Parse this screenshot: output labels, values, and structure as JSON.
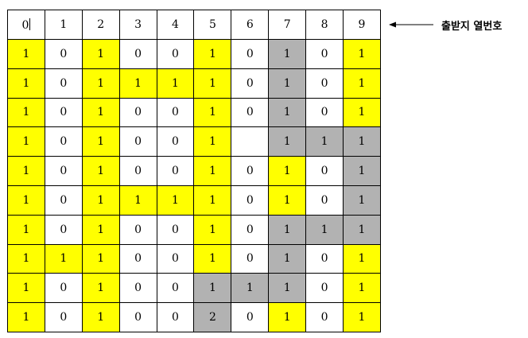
{
  "header": [
    "0",
    "1",
    "2",
    "3",
    "4",
    "5",
    "6",
    "7",
    "8",
    "9"
  ],
  "annotation": "출받지 열번호",
  "colors": {
    "yellow": "#ffff00",
    "gray": "#b2b2b2",
    "white": "#ffffff"
  },
  "rows": [
    [
      [
        "1",
        "y"
      ],
      [
        "0",
        "w"
      ],
      [
        "1",
        "y"
      ],
      [
        "0",
        "w"
      ],
      [
        "0",
        "w"
      ],
      [
        "1",
        "y"
      ],
      [
        "0",
        "w"
      ],
      [
        "1",
        "g"
      ],
      [
        "0",
        "w"
      ],
      [
        "1",
        "y"
      ]
    ],
    [
      [
        "1",
        "y"
      ],
      [
        "0",
        "w"
      ],
      [
        "1",
        "y"
      ],
      [
        "1",
        "y"
      ],
      [
        "1",
        "y"
      ],
      [
        "1",
        "y"
      ],
      [
        "0",
        "w"
      ],
      [
        "1",
        "g"
      ],
      [
        "0",
        "w"
      ],
      [
        "1",
        "y"
      ]
    ],
    [
      [
        "1",
        "y"
      ],
      [
        "0",
        "w"
      ],
      [
        "1",
        "y"
      ],
      [
        "0",
        "w"
      ],
      [
        "0",
        "w"
      ],
      [
        "1",
        "y"
      ],
      [
        "0",
        "w"
      ],
      [
        "1",
        "g"
      ],
      [
        "0",
        "w"
      ],
      [
        "1",
        "y"
      ]
    ],
    [
      [
        "1",
        "y"
      ],
      [
        "0",
        "w"
      ],
      [
        "1",
        "y"
      ],
      [
        "0",
        "w"
      ],
      [
        "0",
        "w"
      ],
      [
        "1",
        "y"
      ],
      [
        "",
        "w"
      ],
      [
        "1",
        "g"
      ],
      [
        "1",
        "g"
      ],
      [
        "1",
        "g"
      ]
    ],
    [
      [
        "1",
        "y"
      ],
      [
        "0",
        "w"
      ],
      [
        "1",
        "y"
      ],
      [
        "0",
        "w"
      ],
      [
        "0",
        "w"
      ],
      [
        "1",
        "y"
      ],
      [
        "0",
        "w"
      ],
      [
        "1",
        "y"
      ],
      [
        "0",
        "w"
      ],
      [
        "1",
        "g"
      ]
    ],
    [
      [
        "1",
        "y"
      ],
      [
        "0",
        "w"
      ],
      [
        "1",
        "y"
      ],
      [
        "1",
        "y"
      ],
      [
        "1",
        "y"
      ],
      [
        "1",
        "y"
      ],
      [
        "0",
        "w"
      ],
      [
        "1",
        "y"
      ],
      [
        "0",
        "w"
      ],
      [
        "1",
        "g"
      ]
    ],
    [
      [
        "1",
        "y"
      ],
      [
        "0",
        "w"
      ],
      [
        "1",
        "y"
      ],
      [
        "0",
        "w"
      ],
      [
        "0",
        "w"
      ],
      [
        "1",
        "y"
      ],
      [
        "0",
        "w"
      ],
      [
        "1",
        "g"
      ],
      [
        "1",
        "g"
      ],
      [
        "1",
        "g"
      ]
    ],
    [
      [
        "1",
        "y"
      ],
      [
        "1",
        "y"
      ],
      [
        "1",
        "y"
      ],
      [
        "0",
        "w"
      ],
      [
        "0",
        "w"
      ],
      [
        "1",
        "y"
      ],
      [
        "0",
        "w"
      ],
      [
        "1",
        "g"
      ],
      [
        "0",
        "w"
      ],
      [
        "1",
        "y"
      ]
    ],
    [
      [
        "1",
        "y"
      ],
      [
        "0",
        "w"
      ],
      [
        "1",
        "y"
      ],
      [
        "0",
        "w"
      ],
      [
        "0",
        "w"
      ],
      [
        "1",
        "g"
      ],
      [
        "1",
        "g"
      ],
      [
        "1",
        "g"
      ],
      [
        "0",
        "w"
      ],
      [
        "1",
        "y"
      ]
    ],
    [
      [
        "1",
        "y"
      ],
      [
        "0",
        "w"
      ],
      [
        "1",
        "y"
      ],
      [
        "0",
        "w"
      ],
      [
        "0",
        "w"
      ],
      [
        "2",
        "g"
      ],
      [
        "0",
        "w"
      ],
      [
        "1",
        "y"
      ],
      [
        "0",
        "w"
      ],
      [
        "1",
        "y"
      ]
    ]
  ]
}
